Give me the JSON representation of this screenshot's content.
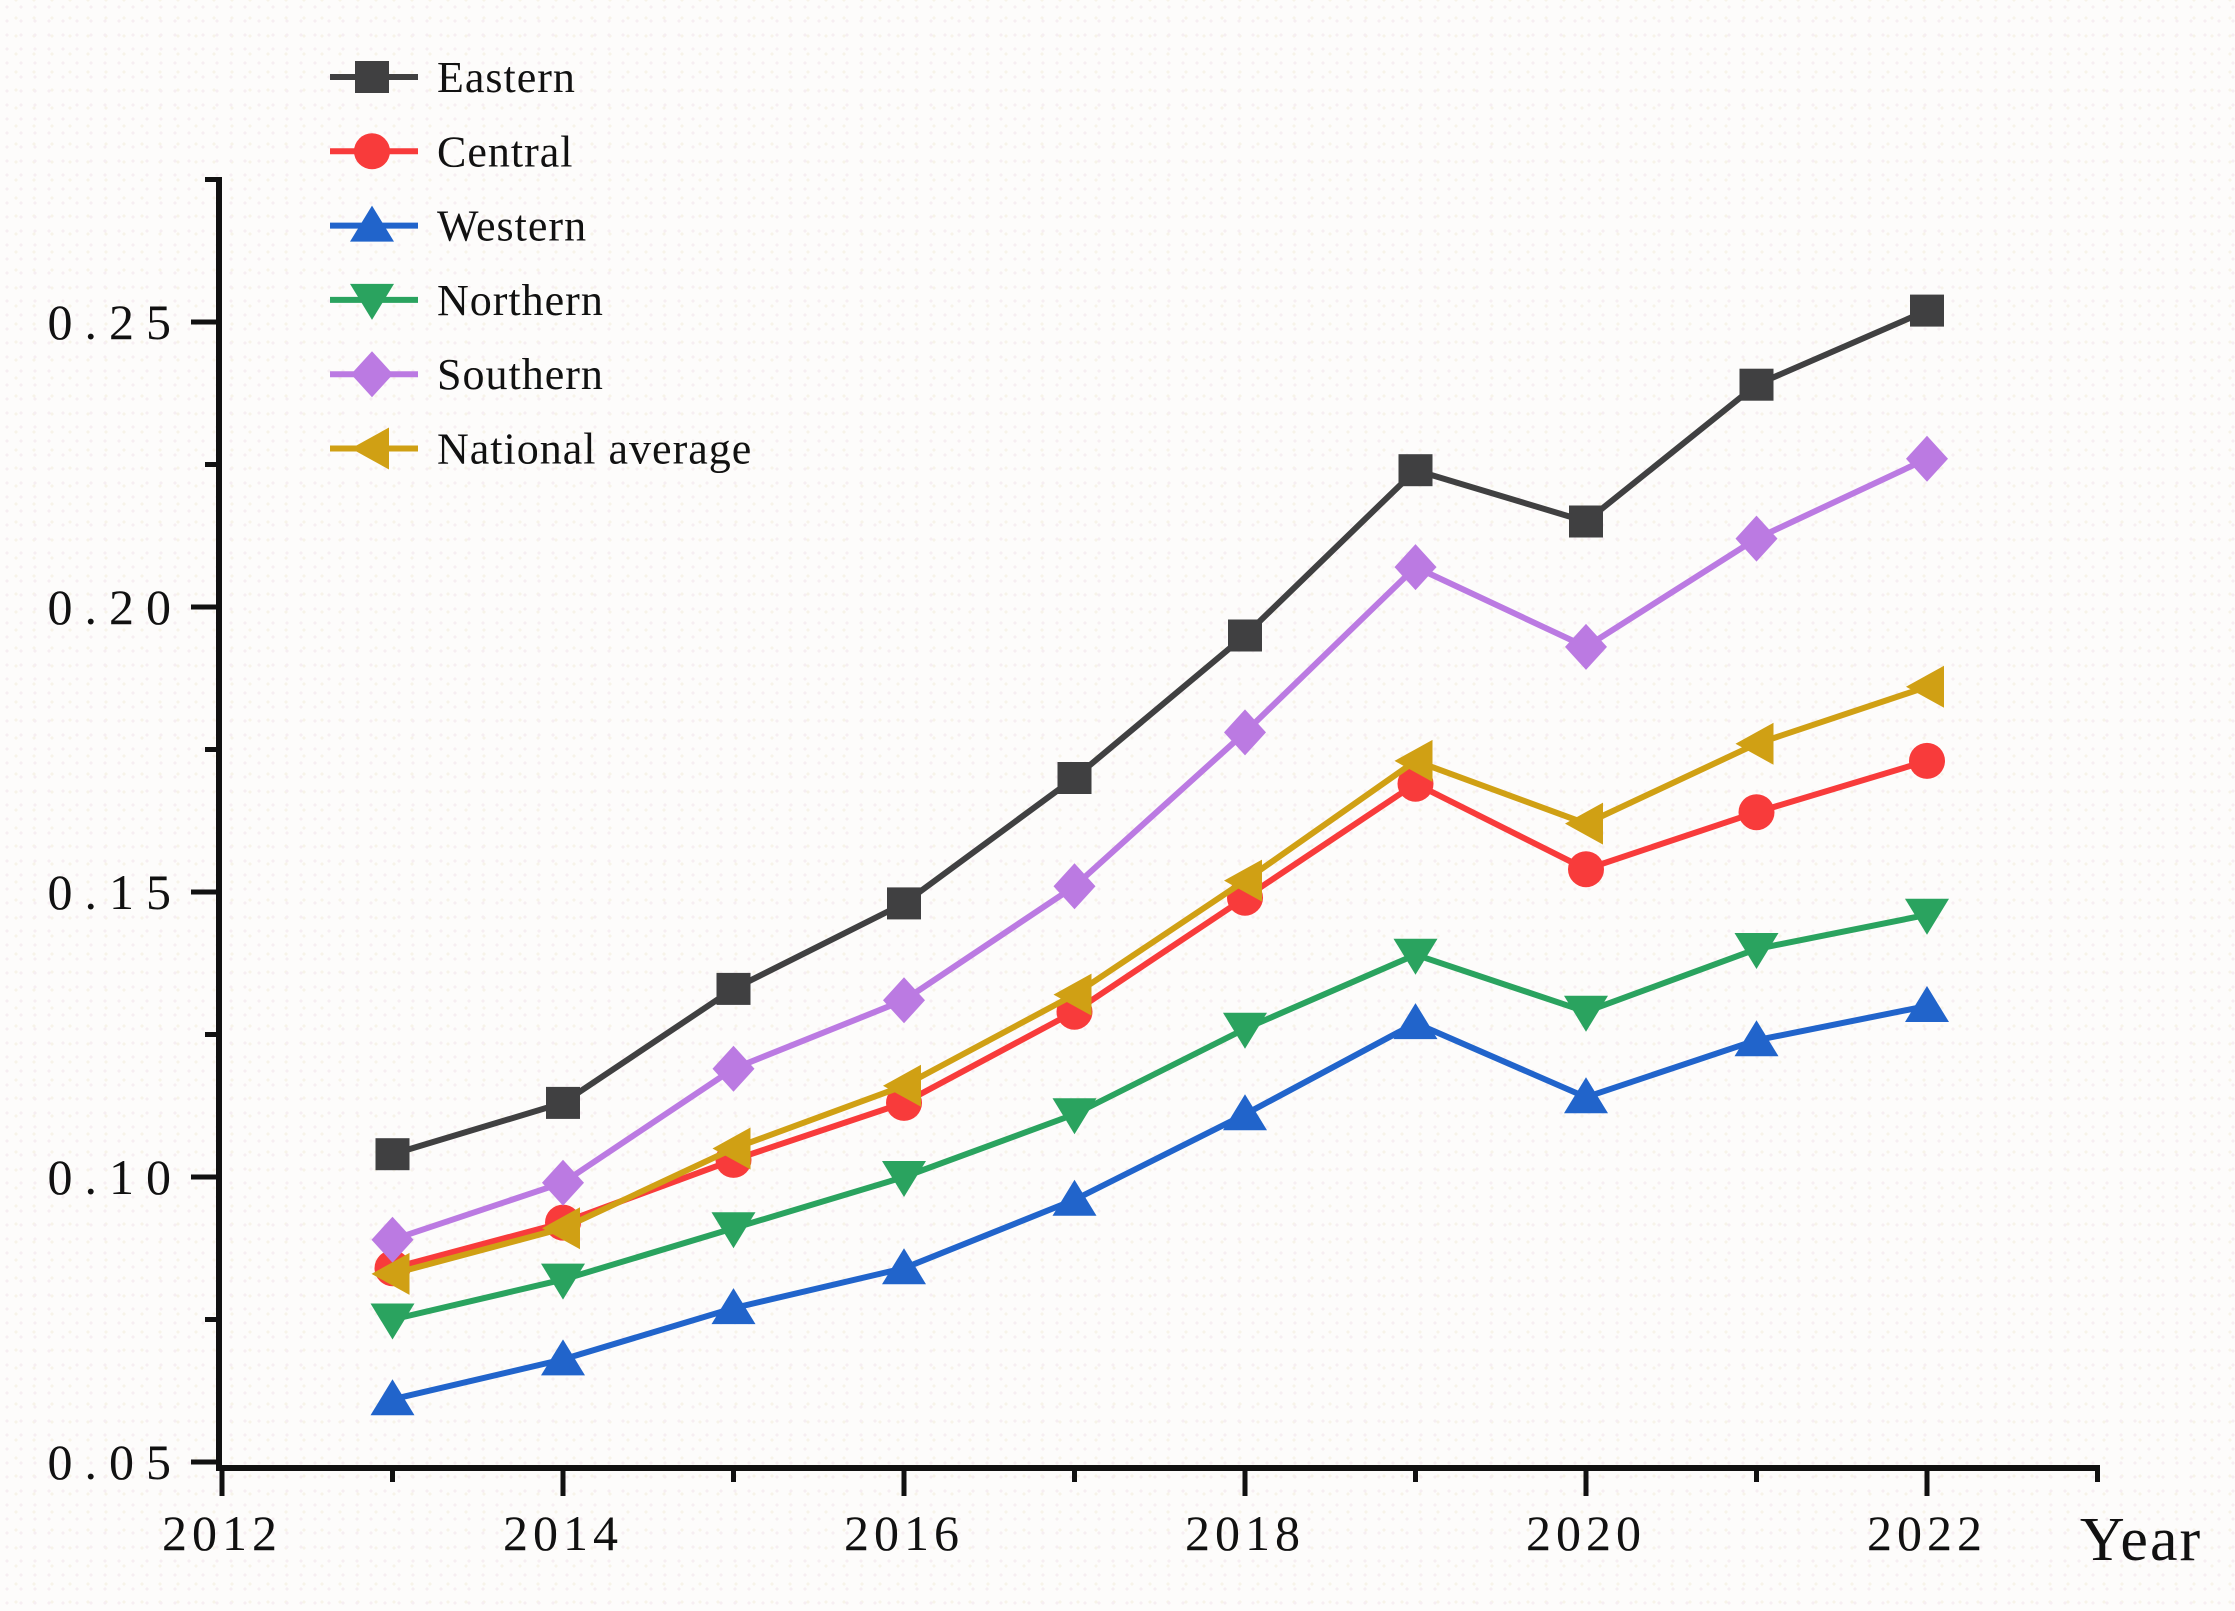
{
  "figure": {
    "background": "#fdfcfb",
    "axis_color": "#111111"
  },
  "chart_data": {
    "type": "line",
    "title": "",
    "xlabel": "Year",
    "ylabel": "",
    "x": [
      2013,
      2014,
      2015,
      2016,
      2017,
      2018,
      2019,
      2020,
      2021,
      2022
    ],
    "series": [
      {
        "name": "Eastern",
        "color": "#404041",
        "marker": "square",
        "values": [
          0.104,
          0.113,
          0.133,
          0.148,
          0.17,
          0.195,
          0.224,
          0.215,
          0.239,
          0.252
        ]
      },
      {
        "name": "Central",
        "color": "#f83b3b",
        "marker": "circle",
        "values": [
          0.084,
          0.092,
          0.103,
          0.113,
          0.129,
          0.149,
          0.169,
          0.154,
          0.164,
          0.173
        ]
      },
      {
        "name": "Western",
        "color": "#2164cb",
        "marker": "triangle-up",
        "values": [
          0.061,
          0.068,
          0.077,
          0.084,
          0.096,
          0.111,
          0.127,
          0.114,
          0.124,
          0.13
        ]
      },
      {
        "name": "Northern",
        "color": "#2aa35f",
        "marker": "triangle-down",
        "values": [
          0.075,
          0.082,
          0.091,
          0.1,
          0.111,
          0.126,
          0.139,
          0.129,
          0.14,
          0.146
        ]
      },
      {
        "name": "Southern",
        "color": "#bb7ae2",
        "marker": "diamond",
        "values": [
          0.089,
          0.099,
          0.119,
          0.131,
          0.151,
          0.178,
          0.207,
          0.193,
          0.212,
          0.226
        ]
      },
      {
        "name": "National average",
        "color": "#d0a014",
        "marker": "triangle-left",
        "values": [
          0.083,
          0.091,
          0.105,
          0.116,
          0.132,
          0.152,
          0.173,
          0.162,
          0.176,
          0.186
        ]
      }
    ],
    "x_ticks_major": [
      2012,
      2014,
      2016,
      2018,
      2020,
      2022
    ],
    "x_tick_labels": [
      "2012",
      "2014",
      "2016",
      "2018",
      "2020",
      "2022"
    ],
    "x_ticks_minor": [
      2013,
      2015,
      2017,
      2019,
      2021,
      2023
    ],
    "y_ticks_major": [
      0.05,
      0.1,
      0.15,
      0.2,
      0.25
    ],
    "y_tick_labels": [
      "0.05",
      "0.10",
      "0.15",
      "0.20",
      "0.25"
    ],
    "y_ticks_minor": [
      0.075,
      0.125,
      0.175,
      0.225,
      0.275
    ],
    "xlim": [
      2012,
      2023.1
    ],
    "ylim": [
      0.05,
      0.2755
    ],
    "grid": false,
    "legend_position": "top-left"
  }
}
